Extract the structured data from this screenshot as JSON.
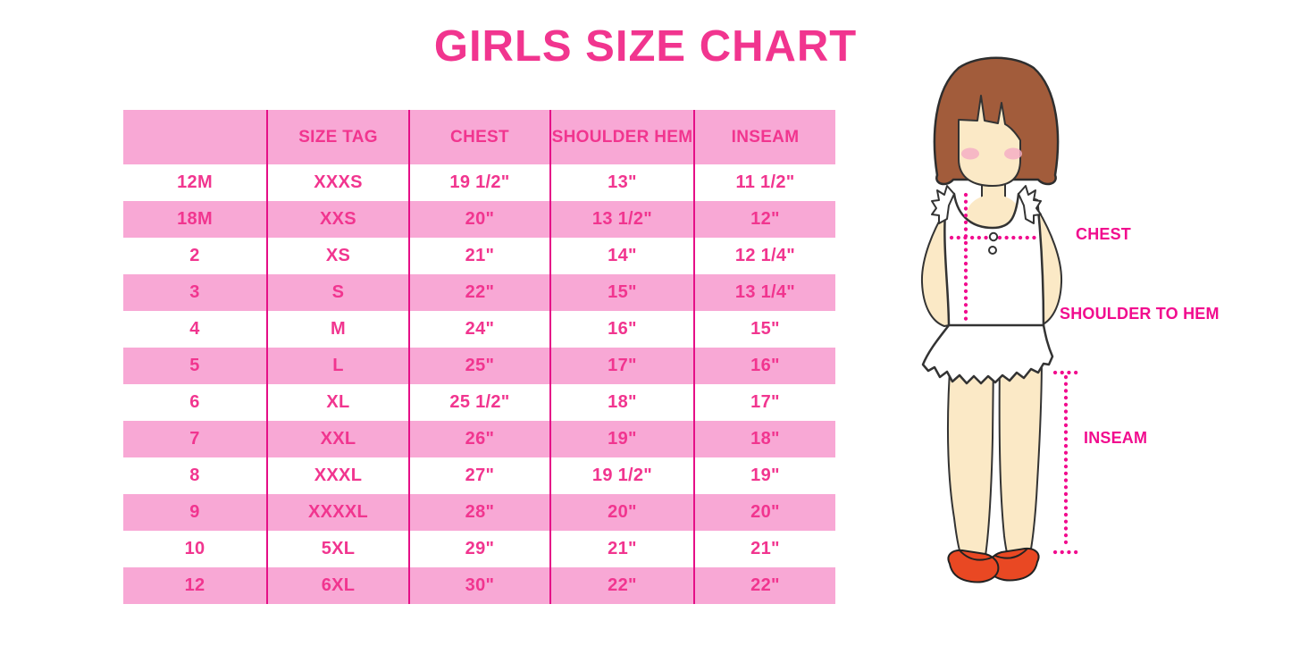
{
  "title": "GIRLS SIZE CHART",
  "chart_data": {
    "type": "table",
    "title": "GIRLS SIZE CHART",
    "columns": [
      "",
      "SIZE TAG",
      "CHEST",
      "SHOULDER HEM",
      "INSEAM"
    ],
    "rows": [
      [
        "12M",
        "XXXS",
        "19 1/2\"",
        "13\"",
        "11 1/2\""
      ],
      [
        "18M",
        "XXS",
        "20\"",
        "13 1/2\"",
        "12\""
      ],
      [
        "2",
        "XS",
        "21\"",
        "14\"",
        "12 1/4\""
      ],
      [
        "3",
        "S",
        "22\"",
        "15\"",
        "13 1/4\""
      ],
      [
        "4",
        "M",
        "24\"",
        "16\"",
        "15\""
      ],
      [
        "5",
        "L",
        "25\"",
        "17\"",
        "16\""
      ],
      [
        "6",
        "XL",
        "25 1/2\"",
        "18\"",
        "17\""
      ],
      [
        "7",
        "XXL",
        "26\"",
        "19\"",
        "18\""
      ],
      [
        "8",
        "XXXL",
        "27\"",
        "19 1/2\"",
        "19\""
      ],
      [
        "9",
        "XXXXL",
        "28\"",
        "20\"",
        "20\""
      ],
      [
        "10",
        "5XL",
        "29\"",
        "21\"",
        "21\""
      ],
      [
        "12",
        "6XL",
        "30\"",
        "22\"",
        "22\""
      ]
    ]
  },
  "diagram": {
    "chest_label": "CHEST",
    "shoulder_to_hem_label": "SHOULDER TO HEM",
    "inseam_label": "INSEAM"
  },
  "colors": {
    "title_pink": "#F1358F",
    "row_pink": "#F8A8D5",
    "line_magenta": "#E50F87",
    "cell_text": "#F1358F",
    "label_pink": "#F10C8E"
  }
}
